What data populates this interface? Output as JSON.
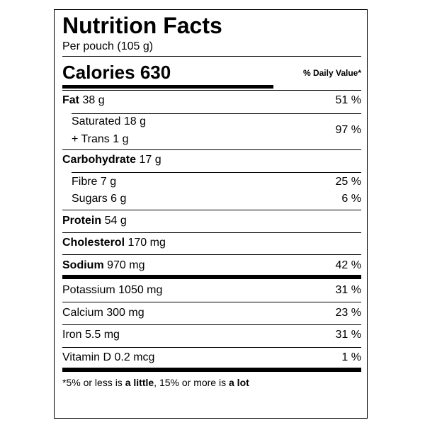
{
  "label": {
    "title": "Nutrition Facts",
    "serving": "Per pouch (105 g)",
    "calories_label": "Calories",
    "calories_value": "630",
    "dv_header": "% Daily Value*",
    "fat": {
      "name": "Fat",
      "amount": "38 g",
      "dv": "51 %"
    },
    "saturated": {
      "line1": "Saturated 18 g",
      "line2": "+ Trans 1 g",
      "dv": "97 %"
    },
    "carbohydrate": {
      "name": "Carbohydrate",
      "amount": "17 g"
    },
    "fibre": {
      "text": "Fibre 7 g",
      "dv": "25 %"
    },
    "sugars": {
      "text": "Sugars 6 g",
      "dv": "6 %"
    },
    "protein": {
      "name": "Protein",
      "amount": "54 g"
    },
    "cholesterol": {
      "name": "Cholesterol",
      "amount": "170 mg"
    },
    "sodium": {
      "name": "Sodium",
      "amount": "970 mg",
      "dv": "42 %"
    },
    "potassium": {
      "text": "Potassium 1050 mg",
      "dv": "31 %"
    },
    "calcium": {
      "text": "Calcium 300 mg",
      "dv": "23 %"
    },
    "iron": {
      "text": "Iron 5.5 mg",
      "dv": "31 %"
    },
    "vitamin_d": {
      "text": "Vitamin D 0.2 mcg",
      "dv": "1 %"
    },
    "footnote": {
      "part1": "*5% or less is ",
      "bold1": "a little",
      "part2": ", 15% or more is ",
      "bold2": "a lot"
    }
  }
}
